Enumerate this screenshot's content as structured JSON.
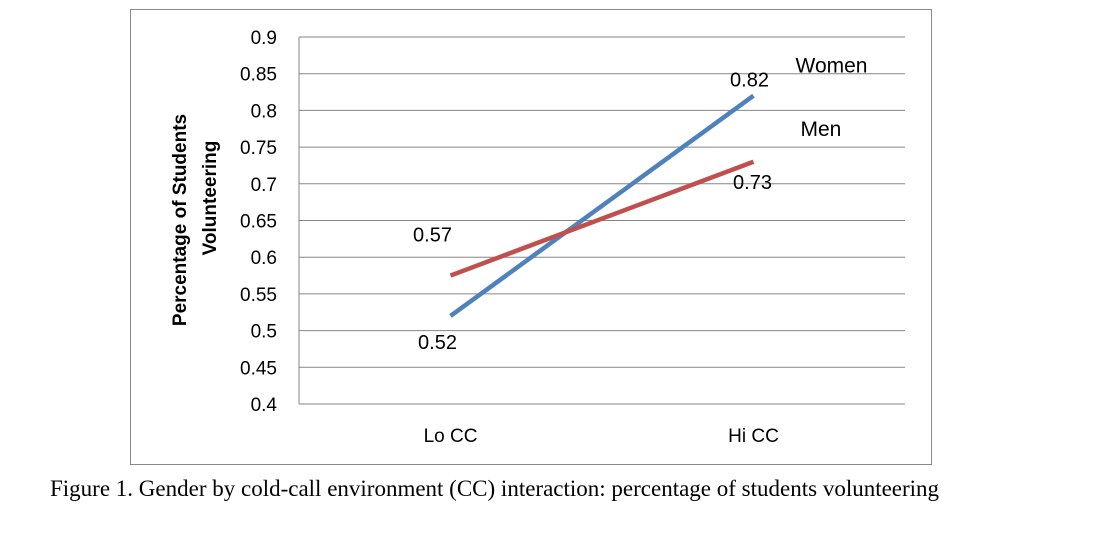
{
  "chart_data": {
    "type": "line",
    "categories": [
      "Lo CC",
      "Hi CC"
    ],
    "series": [
      {
        "name": "Women",
        "values": [
          0.52,
          0.82
        ],
        "color": "#4F81BD",
        "labels": [
          "0.52",
          "0.82"
        ]
      },
      {
        "name": "Men",
        "values": [
          0.575,
          0.73
        ],
        "color": "#C0504D",
        "labels": [
          "0.57",
          "0.73"
        ]
      }
    ],
    "ylabel_lines": [
      "Percentage of Students",
      "Volunteering"
    ],
    "xlabel": "",
    "ylim": [
      0.4,
      0.9
    ],
    "yticks": [
      "0.9",
      "0.85",
      "0.8",
      "0.75",
      "0.7",
      "0.65",
      "0.6",
      "0.55",
      "0.5",
      "0.45",
      "0.4"
    ],
    "grid": true,
    "legend": "inline labels at line ends"
  },
  "caption": "Figure 1. Gender by cold-call environment (CC) interaction: percentage of students volunteering",
  "colors": {
    "gridline": "#868686",
    "frame": "#898989"
  }
}
